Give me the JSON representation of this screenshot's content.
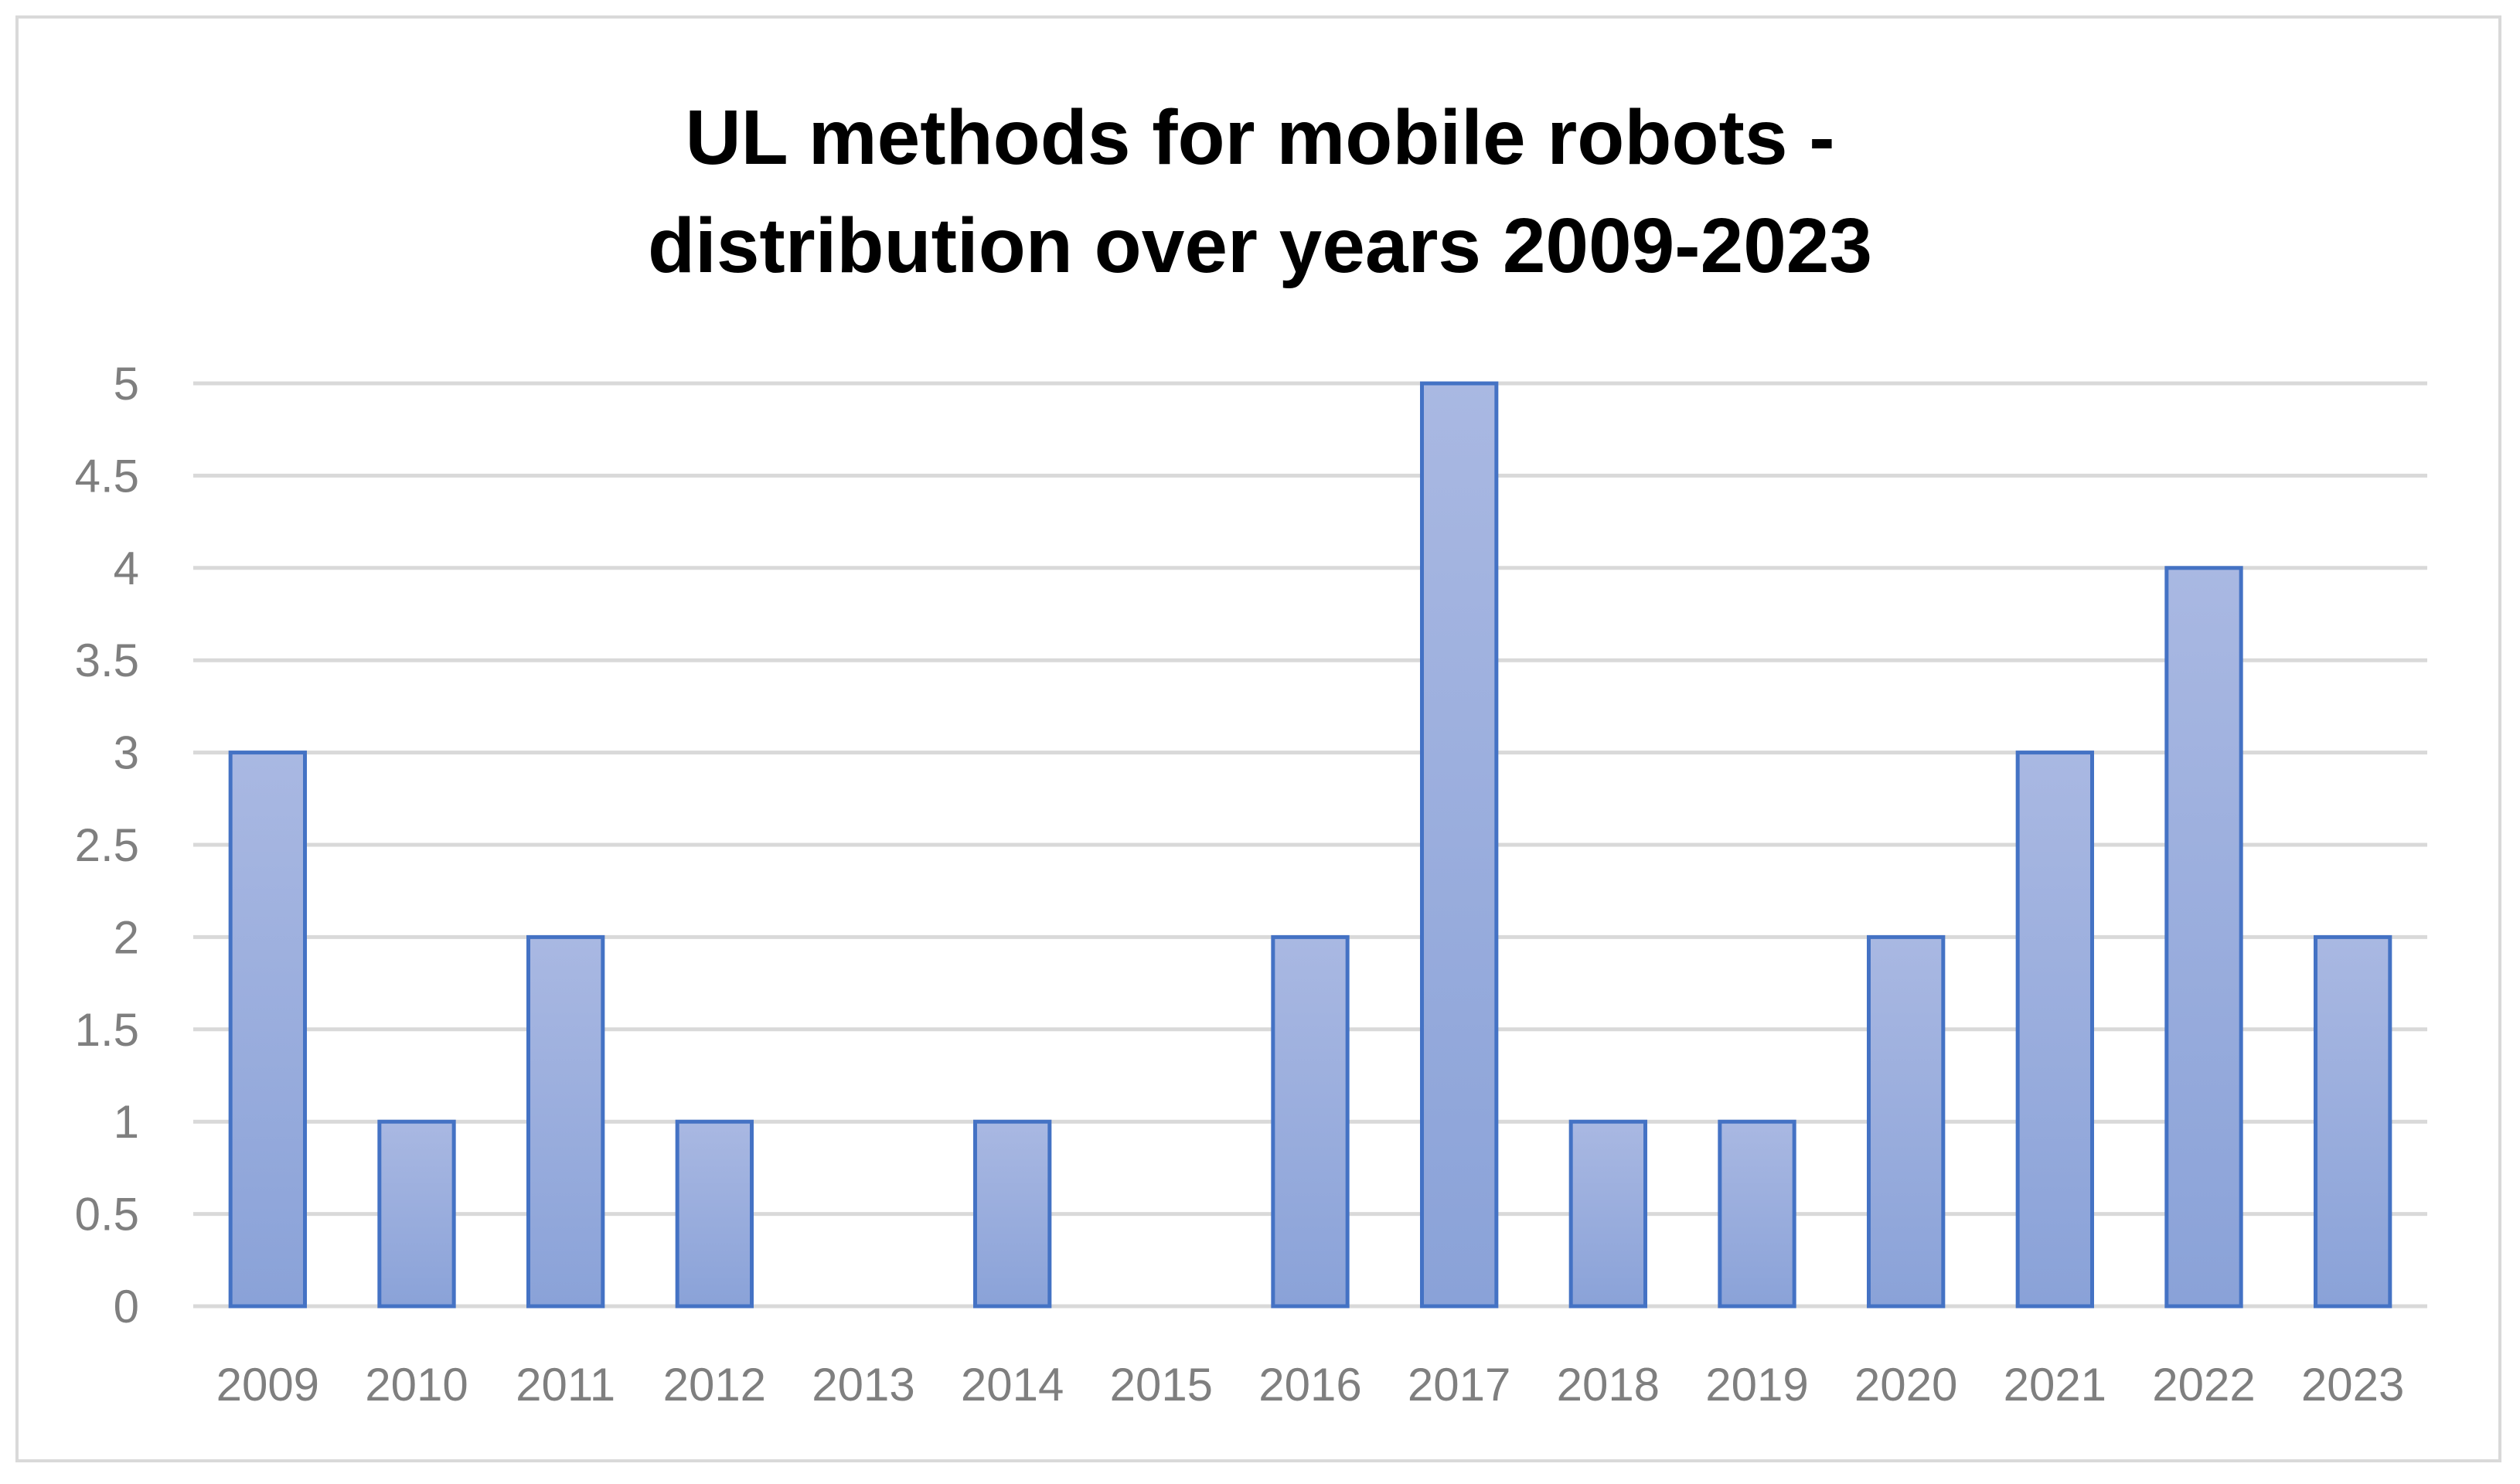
{
  "chart_data": {
    "type": "bar",
    "title": "UL methods for mobile robots - distribution over years 2009-2023",
    "title_lines": [
      "UL methods for mobile robots -",
      "distribution over years 2009-2023"
    ],
    "categories": [
      "2009",
      "2010",
      "2011",
      "2012",
      "2013",
      "2014",
      "2015",
      "2016",
      "2017",
      "2018",
      "2019",
      "2020",
      "2021",
      "2022",
      "2023"
    ],
    "values": [
      3,
      1,
      2,
      1,
      0,
      1,
      0,
      2,
      5,
      1,
      1,
      2,
      3,
      4,
      2
    ],
    "xlabel": "",
    "ylabel": "",
    "ylim": [
      0,
      5
    ],
    "yticks": [
      "0",
      "0.5",
      "1",
      "1.5",
      "2",
      "2.5",
      "3",
      "3.5",
      "4",
      "4.5",
      "5"
    ],
    "grid": true,
    "legend": "none",
    "colors": {
      "bar_fill_top": "#a9b8e2",
      "bar_fill_bottom": "#8aa2d8",
      "bar_border": "#4472c4",
      "grid": "#d9d9d9",
      "tick_text": "#7f7f7f",
      "title_text": "#000000"
    }
  }
}
